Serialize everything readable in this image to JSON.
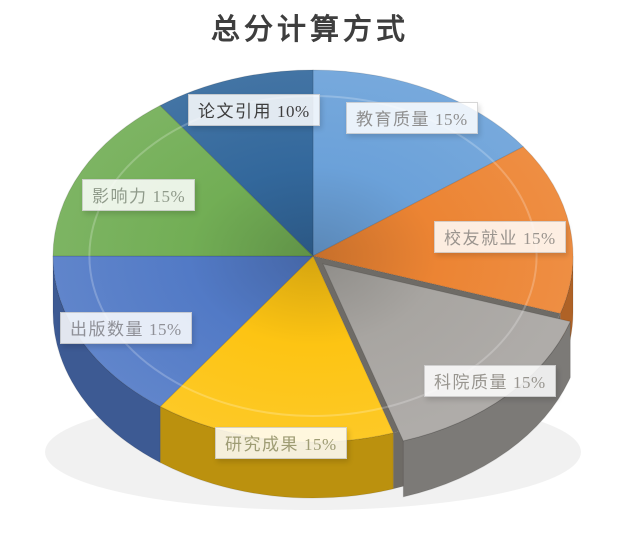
{
  "page": {
    "background_color": "#ffffff"
  },
  "chart_data": {
    "type": "pie",
    "three_d": true,
    "title": "总分计算方式",
    "unit": "%",
    "direction": "clockwise",
    "start_angle_deg": 0,
    "legend_position": "none",
    "labels_on_chart": true,
    "categories": [
      "教育质量",
      "校友就业",
      "科院质量",
      "研究成果",
      "出版数量",
      "影响力",
      "论文引用"
    ],
    "values": [
      15,
      15,
      15,
      15,
      15,
      15,
      10
    ],
    "slice_ids": [
      "education-quality",
      "alumni-employment",
      "faculty-quality",
      "research-output",
      "publication-count",
      "influence",
      "paper-citations"
    ],
    "colors": [
      "#6ba1d9",
      "#ec8433",
      "#a8a5a1",
      "#fdc413",
      "#527ac6",
      "#72ae55",
      "#33689c"
    ],
    "label_text_colors": [
      "#8f8f8f",
      "#9a948e",
      "#98958f",
      "#9e9c74",
      "#8f9097",
      "#8f9a8a",
      "#3d3d3d"
    ],
    "exploded_slice": "科院质量"
  }
}
